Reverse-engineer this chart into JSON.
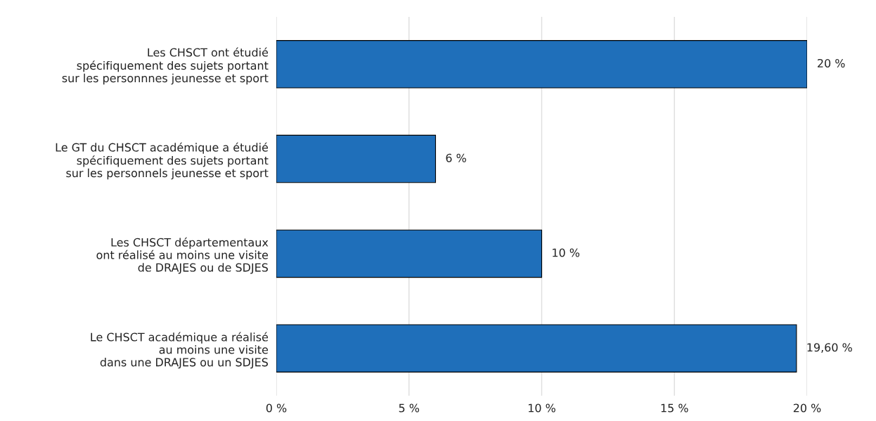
{
  "chart_data": {
    "type": "bar",
    "orientation": "horizontal",
    "categories": [
      "Les CHSCT ont étudié\nspécifiquement des sujets portant\nsur les personnnes jeunesse et sport",
      "Le GT du CHSCT académique a étudié\nspécifiquement des sujets portant\nsur les personnels jeunesse et sport",
      "Les CHSCT départementaux\nont réalisé au moins une visite\nde DRAJES ou de SDJES",
      "Le CHSCT académique a réalisé\nau moins une visite\ndans une DRAJES ou un SDJES"
    ],
    "values": [
      20,
      6,
      10,
      19.6
    ],
    "value_labels": [
      "20 %",
      "6 %",
      "10 %",
      "19,60 %"
    ],
    "color": "#1f6fba",
    "xlim": [
      0,
      20
    ],
    "xticks": [
      {
        "value": 0,
        "label": "0 %"
      },
      {
        "value": 5,
        "label": "5 %"
      },
      {
        "value": 10,
        "label": "10 %"
      },
      {
        "value": 15,
        "label": "15 %"
      },
      {
        "value": 20,
        "label": "20 %"
      }
    ],
    "grid": "x"
  }
}
